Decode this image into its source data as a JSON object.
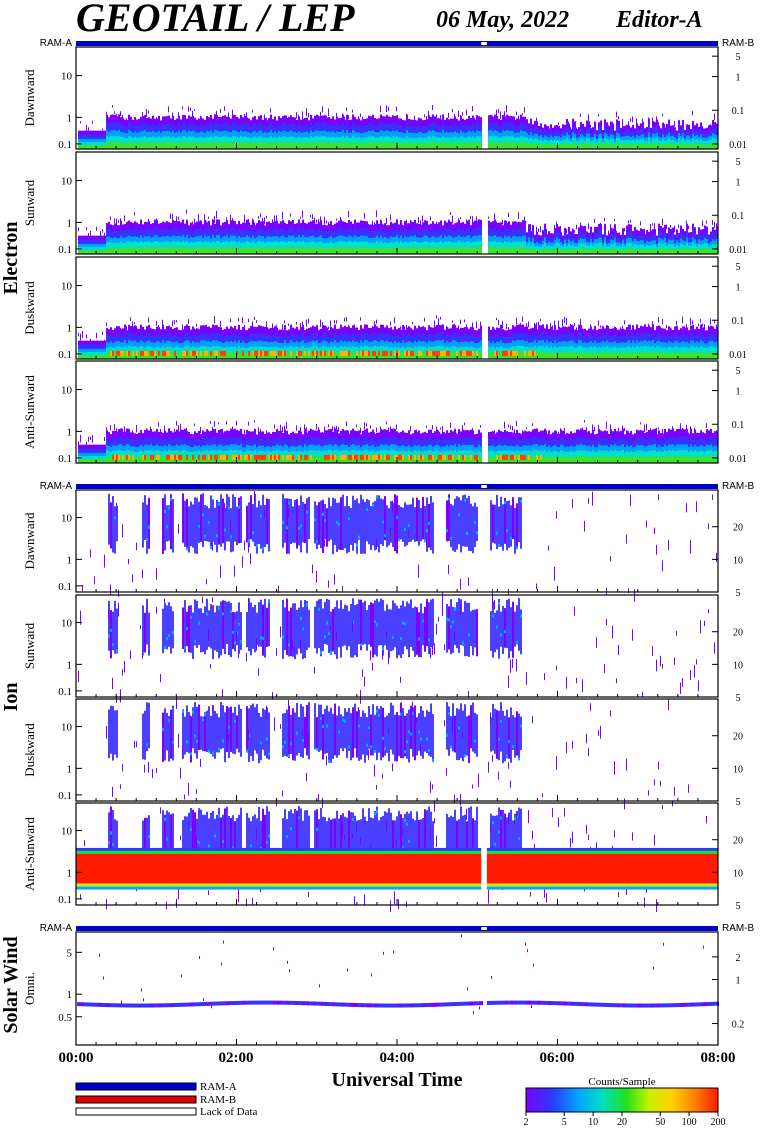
{
  "header": {
    "title": "GEOTAIL / LEP",
    "date": "06 May, 2022",
    "editor": "Editor-A"
  },
  "groups": [
    {
      "label": "Electron"
    },
    {
      "label": "Ion"
    },
    {
      "label": "Solar Wind"
    }
  ],
  "ram_labels": {
    "left": "RAM-A",
    "right": "RAM-B"
  },
  "chart_data": [
    {
      "type": "heatmap",
      "group": "Electron",
      "panels": [
        {
          "ylabel": "Dawnward",
          "left_ticks": [
            "10",
            "1",
            "0.1"
          ],
          "right_ticks": [
            "5",
            "1",
            "0.1",
            "0.01"
          ]
        },
        {
          "ylabel": "Sunward",
          "left_ticks": [
            "10",
            "1",
            "0.1"
          ],
          "right_ticks": [
            "5",
            "1",
            "0.1",
            "0.01"
          ]
        },
        {
          "ylabel": "Duskward",
          "left_ticks": [
            "10",
            "1",
            "0.1"
          ],
          "right_ticks": [
            "5",
            "1",
            "0.1",
            "0.01"
          ]
        },
        {
          "ylabel": "Anti-Sunward",
          "left_ticks": [
            "10",
            "1",
            "0.1"
          ],
          "right_ticks": [
            "5",
            "1",
            "0.1",
            "0.01"
          ]
        }
      ]
    },
    {
      "type": "heatmap",
      "group": "Ion",
      "panels": [
        {
          "ylabel": "Dawnward",
          "left_ticks": [
            "10",
            "1",
            "0.1"
          ],
          "right_ticks": [
            "20",
            "10",
            "5"
          ]
        },
        {
          "ylabel": "Sunward",
          "left_ticks": [
            "10",
            "1",
            "0.1"
          ],
          "right_ticks": [
            "20",
            "10",
            "5"
          ]
        },
        {
          "ylabel": "Duskward",
          "left_ticks": [
            "10",
            "1",
            "0.1"
          ],
          "right_ticks": [
            "20",
            "10",
            "5"
          ]
        },
        {
          "ylabel": "Anti-Sunward",
          "left_ticks": [
            "10",
            "1",
            "0.1"
          ],
          "right_ticks": [
            "20",
            "10",
            "5"
          ]
        }
      ]
    },
    {
      "type": "heatmap",
      "group": "Solar Wind",
      "panels": [
        {
          "ylabel": "Omni.",
          "left_ticks": [
            "5",
            "1",
            "0.5"
          ],
          "right_ticks": [
            "2",
            "1",
            "0.2"
          ]
        }
      ]
    }
  ],
  "x_axis": {
    "label": "Universal Time",
    "ticks": [
      "00:00",
      "02:00",
      "04:00",
      "06:00",
      "08:00"
    ],
    "range_hours": [
      0,
      8
    ]
  },
  "legend": {
    "items": [
      {
        "label": "RAM-A",
        "color": "#0000cc"
      },
      {
        "label": "RAM-B",
        "color": "#e00000"
      },
      {
        "label": "Lack of Data",
        "color": "#ffffff"
      }
    ]
  },
  "colorbar": {
    "title": "Counts/Sample",
    "ticks": [
      "2",
      "5",
      "10",
      "20",
      "50",
      "100",
      "200"
    ],
    "colors": [
      "#7b00ff",
      "#2a3cff",
      "#00a8ff",
      "#00e0c0",
      "#20e020",
      "#c8f000",
      "#ffd000",
      "#ff8000",
      "#ff1a00"
    ]
  }
}
